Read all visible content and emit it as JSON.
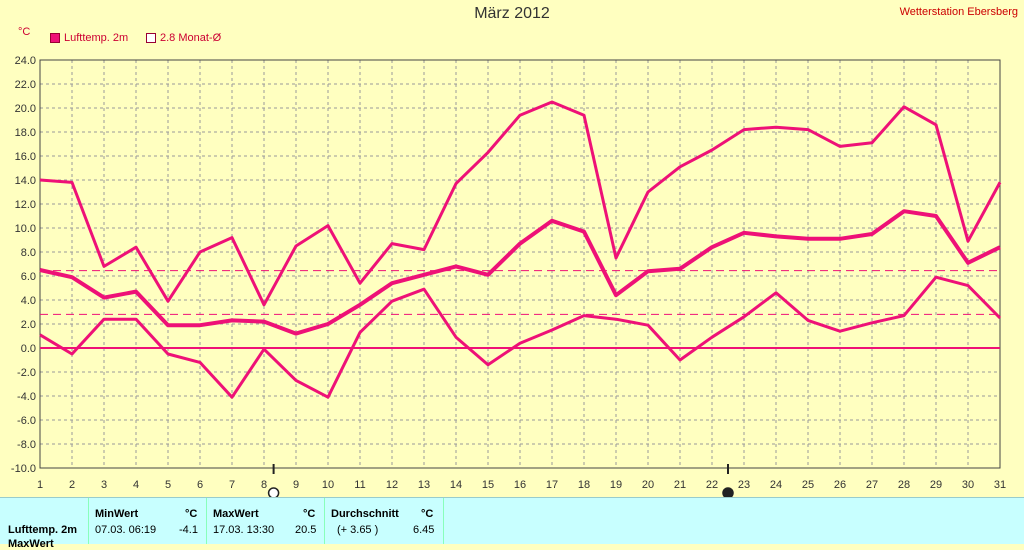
{
  "title": "März 2012",
  "station": "Wetterstation Ebersberg",
  "unit": "°C",
  "legend": {
    "main": "Lufttemp. 2m",
    "avg": "2.8 Monat-Ø"
  },
  "colors": {
    "series": "#ee1177",
    "bg": "#ffffc0",
    "grid": "#9a9a9a",
    "panel": "#c8ffff"
  },
  "chart_data": {
    "type": "line",
    "x": [
      1,
      2,
      3,
      4,
      5,
      6,
      7,
      8,
      9,
      10,
      11,
      12,
      13,
      14,
      15,
      16,
      17,
      18,
      19,
      20,
      21,
      22,
      23,
      24,
      25,
      26,
      27,
      28,
      29,
      30,
      31
    ],
    "xlim": [
      1,
      31
    ],
    "ylim": [
      -10,
      24
    ],
    "y_ticks": [
      "24.0",
      "22.0",
      "20.0",
      "18.0",
      "16.0",
      "14.0",
      "12.0",
      "10.0",
      "8.0",
      "6.0",
      "4.0",
      "2.0",
      "0.0",
      "-2.0",
      "-4.0",
      "-6.0",
      "-8.0",
      "-10.0"
    ],
    "grid": true,
    "series": [
      {
        "name": "Lufttemp. 2m",
        "role": "max",
        "values": [
          14.0,
          13.8,
          6.8,
          8.4,
          3.9,
          8.0,
          9.2,
          3.6,
          8.5,
          10.2,
          5.4,
          8.7,
          8.2,
          13.7,
          16.3,
          19.4,
          20.5,
          19.4,
          7.5,
          13.0,
          15.1,
          16.5,
          18.2,
          18.4,
          18.2,
          16.8,
          17.1,
          20.1,
          18.6,
          8.9,
          13.8
        ]
      },
      {
        "role": "mean",
        "values": [
          6.5,
          5.9,
          4.2,
          4.7,
          1.9,
          1.9,
          2.3,
          2.2,
          1.2,
          2.0,
          3.6,
          5.4,
          6.1,
          6.8,
          6.1,
          8.7,
          10.6,
          9.7,
          4.4,
          6.4,
          6.6,
          8.4,
          9.6,
          9.3,
          9.1,
          9.1,
          9.5,
          11.4,
          11.0,
          7.1,
          8.4
        ]
      },
      {
        "role": "min",
        "values": [
          1.1,
          -0.5,
          2.4,
          2.4,
          -0.5,
          -1.2,
          -4.1,
          -0.1,
          -2.7,
          -4.1,
          1.3,
          3.9,
          4.9,
          0.9,
          -1.4,
          0.4,
          1.5,
          2.7,
          2.4,
          1.9,
          -1.0,
          0.9,
          2.6,
          4.6,
          2.3,
          1.4,
          2.1,
          2.7,
          5.9,
          5.2,
          2.5
        ]
      }
    ],
    "reference_lines": [
      {
        "name": "Monat-Ø",
        "value": 6.45
      },
      {
        "name": "2.8",
        "value": 2.8
      },
      {
        "value": 0
      }
    ],
    "moon_markers": [
      {
        "day": 8.3,
        "phase": "full"
      },
      {
        "day": 22.5,
        "phase": "new"
      }
    ]
  },
  "stats": {
    "col_min": "MinWert",
    "col_max": "MaxWert",
    "col_avg": "Durchschnitt",
    "unit": "°C",
    "row_label": "Lufttemp. 2m",
    "next_row_label": "MaxWert",
    "min_date": "07.03.  06:19",
    "min_value": "-4.1",
    "max_date": "17.03.  13:30",
    "max_value": "20.5",
    "avg_delta": "(+ 3.65 )",
    "avg_value": "6.45"
  }
}
